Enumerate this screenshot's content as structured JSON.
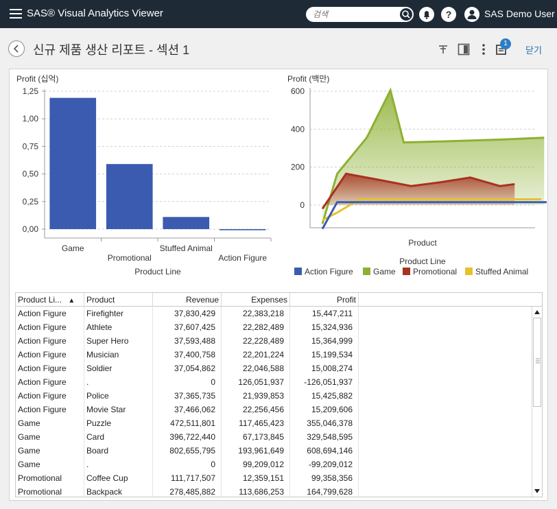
{
  "app": {
    "title": "SAS® Visual Analytics Viewer",
    "search_placeholder": "검색",
    "user_name": "SAS Demo User"
  },
  "header": {
    "page_title": "신규 제품 생산 리포트 - 섹션 1",
    "notification_count": "1",
    "close_label": "닫기"
  },
  "colors": {
    "topbar": "#1e2b37",
    "action_figure": "#3b5bb0",
    "game": "#8db032",
    "promotional": "#a83220",
    "stuffed_animal": "#e8c030"
  },
  "icons": [
    "menu-icon",
    "search-icon",
    "bell-icon",
    "help-icon",
    "user-icon",
    "back-icon",
    "pin-icon",
    "panel-icon",
    "more-icon",
    "comment-icon"
  ],
  "chart_data": [
    {
      "type": "bar",
      "title": "Profit (십억)",
      "xlabel": "Product Line",
      "ylabel": "",
      "categories": [
        "Game",
        "Promotional",
        "Stuffed Animal",
        "Action Figure"
      ],
      "values": [
        1.19,
        0.59,
        0.11,
        -0.01
      ],
      "ylim": [
        0,
        1.25
      ],
      "yticks": [
        "1,25",
        "1,00",
        "0,75",
        "0,50",
        "0,25",
        "0,00"
      ],
      "grid": true
    },
    {
      "type": "area",
      "title": "Profit (백만)",
      "xlabel": "Product",
      "ylim": [
        -120,
        600
      ],
      "yticks": [
        "600",
        "400",
        "200",
        "0"
      ],
      "legend_title": "Product Line",
      "legend_position": "bottom",
      "series": [
        {
          "name": "Action Figure",
          "values": [
            -126,
            15,
            15,
            15,
            15,
            15,
            15,
            15,
            15,
            15,
            15,
            15,
            15,
            15,
            15
          ]
        },
        {
          "name": "Game",
          "values": [
            -99,
            165,
            355,
            605,
            330,
            335,
            340,
            345,
            350,
            355
          ]
        },
        {
          "name": "Promotional",
          "values": [
            -20,
            165,
            130,
            100,
            120,
            145,
            100,
            110
          ]
        },
        {
          "name": "Stuffed Animal",
          "values": [
            -80,
            -40,
            30,
            30,
            30,
            30,
            30,
            30,
            30,
            30,
            30,
            30
          ]
        }
      ]
    }
  ],
  "table": {
    "columns": [
      "Product Li...",
      "Product",
      "Revenue",
      "Expenses",
      "Profit"
    ],
    "sort_indicator": "▲",
    "rows": [
      [
        "Action Figure",
        "Firefighter",
        "37,830,429",
        "22,383,218",
        "15,447,211"
      ],
      [
        "Action Figure",
        "Athlete",
        "37,607,425",
        "22,282,489",
        "15,324,936"
      ],
      [
        "Action Figure",
        "Super Hero",
        "37,593,488",
        "22,228,489",
        "15,364,999"
      ],
      [
        "Action Figure",
        "Musician",
        "37,400,758",
        "22,201,224",
        "15,199,534"
      ],
      [
        "Action Figure",
        "Soldier",
        "37,054,862",
        "22,046,588",
        "15,008,274"
      ],
      [
        "Action Figure",
        ".",
        "0",
        "126,051,937",
        "-126,051,937"
      ],
      [
        "Action Figure",
        "Police",
        "37,365,735",
        "21,939,853",
        "15,425,882"
      ],
      [
        "Action Figure",
        "Movie Star",
        "37,466,062",
        "22,256,456",
        "15,209,606"
      ],
      [
        "Game",
        "Puzzle",
        "472,511,801",
        "117,465,423",
        "355,046,378"
      ],
      [
        "Game",
        "Card",
        "396,722,440",
        "67,173,845",
        "329,548,595"
      ],
      [
        "Game",
        "Board",
        "802,655,795",
        "193,961,649",
        "608,694,146"
      ],
      [
        "Game",
        ".",
        "0",
        "99,209,012",
        "-99,209,012"
      ],
      [
        "Promotional",
        "Coffee Cup",
        "111,717,507",
        "12,359,151",
        "99,358,356"
      ],
      [
        "Promotional",
        "Backpack",
        "278,485,882",
        "113,686,253",
        "164,799,628"
      ]
    ]
  }
}
